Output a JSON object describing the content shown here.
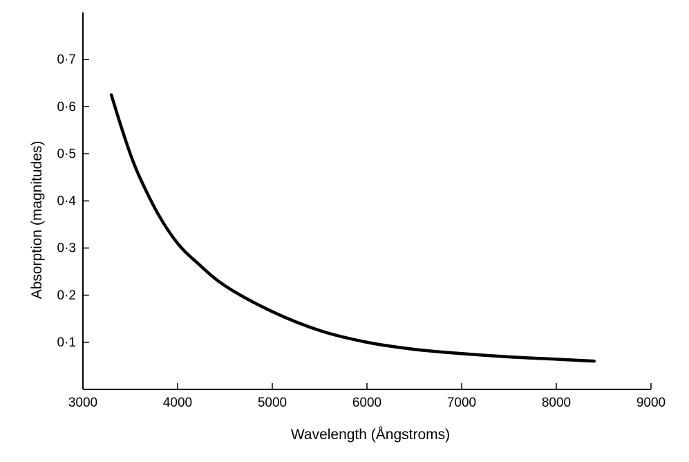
{
  "chart_data": {
    "type": "line",
    "title": "",
    "xlabel": "Wavelength (Ångstroms)",
    "ylabel": "Absorption (magnitudes)",
    "xlim": [
      3000,
      9000
    ],
    "ylim": [
      0,
      0.8
    ],
    "x_ticks": [
      3000,
      4000,
      5000,
      6000,
      7000,
      8000,
      9000
    ],
    "x_tick_labels": [
      "3000",
      "4000",
      "5000",
      "6000",
      "7000",
      "8000",
      "9000"
    ],
    "y_ticks": [
      0.1,
      0.2,
      0.3,
      0.4,
      0.5,
      0.6,
      0.7
    ],
    "y_tick_labels": [
      "0·1",
      "0·2",
      "0·3",
      "0·4",
      "0·5",
      "0·6",
      "0·7"
    ],
    "grid": false,
    "legend": "none",
    "line_color": "#000000",
    "series": [
      {
        "x": [
          3300,
          3400,
          3500,
          3600,
          3800,
          4000,
          4200,
          4500,
          5000,
          5500,
          6000,
          6500,
          7000,
          7500,
          8000,
          8400
        ],
        "y": [
          0.625,
          0.56,
          0.5,
          0.45,
          0.37,
          0.31,
          0.27,
          0.22,
          0.165,
          0.125,
          0.1,
          0.085,
          0.076,
          0.069,
          0.064,
          0.06
        ]
      }
    ]
  }
}
